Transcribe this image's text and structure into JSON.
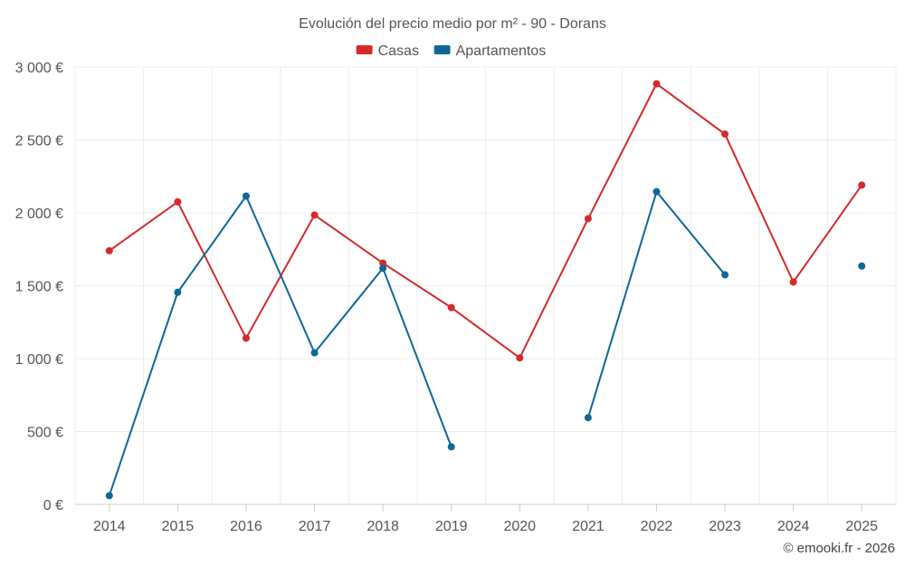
{
  "chart_data": {
    "type": "line",
    "title": "Evolución del precio medio por m² - 90 - Dorans",
    "categories": [
      "2014",
      "2015",
      "2016",
      "2017",
      "2018",
      "2019",
      "2020",
      "2021",
      "2022",
      "2023",
      "2024",
      "2025"
    ],
    "ylim": [
      0,
      3000
    ],
    "yticks": [
      0,
      500,
      1000,
      1500,
      2000,
      2500,
      3000
    ],
    "ytick_labels": [
      "0 €",
      "500 €",
      "1 000 €",
      "1 500 €",
      "2 000 €",
      "2 500 €",
      "3 000 €"
    ],
    "grid": true,
    "legend_position": "top-center",
    "series": [
      {
        "name": "Casas",
        "color": "#d42a2a",
        "values": [
          1740,
          2075,
          1140,
          1985,
          1655,
          1350,
          1005,
          1960,
          2885,
          2540,
          1525,
          2190
        ]
      },
      {
        "name": "Apartamentos",
        "color": "#0f6699",
        "values": [
          60,
          1455,
          2115,
          1040,
          1620,
          395,
          null,
          595,
          2145,
          1575,
          null,
          1635
        ]
      }
    ]
  },
  "credit": "© emooki.fr - 2026"
}
